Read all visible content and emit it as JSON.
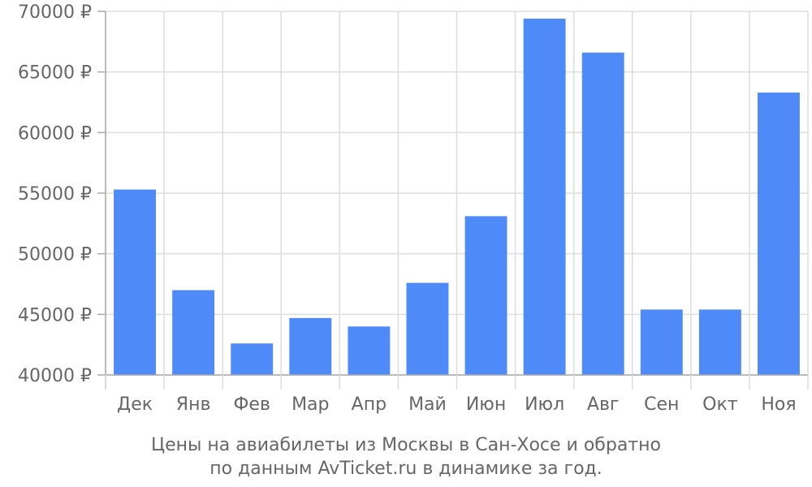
{
  "chart_data": {
    "type": "bar",
    "categories": [
      "Дек",
      "Янв",
      "Фев",
      "Мар",
      "Апр",
      "Май",
      "Июн",
      "Июл",
      "Авг",
      "Сен",
      "Окт",
      "Ноя"
    ],
    "values": [
      55300,
      47000,
      42600,
      44700,
      44000,
      47600,
      53100,
      69400,
      66600,
      45400,
      45400,
      63300
    ],
    "ylim": [
      40000,
      70000
    ],
    "yticks": [
      40000,
      45000,
      50000,
      55000,
      60000,
      65000,
      70000
    ],
    "ytick_labels": [
      "40000 ₽",
      "45000 ₽",
      "50000 ₽",
      "55000 ₽",
      "60000 ₽",
      "65000 ₽",
      "70000 ₽"
    ],
    "grid": true,
    "bar_color": "#4e8af8",
    "caption": {
      "line1": "Цены на авиабилеты из Москвы в Сан-Хосе и обратно",
      "line2": "по данным AvTicket.ru в динамике за год."
    }
  },
  "colors": {
    "grid": "#dddddd",
    "axis": "#aaaaaa",
    "text": "#666666"
  }
}
